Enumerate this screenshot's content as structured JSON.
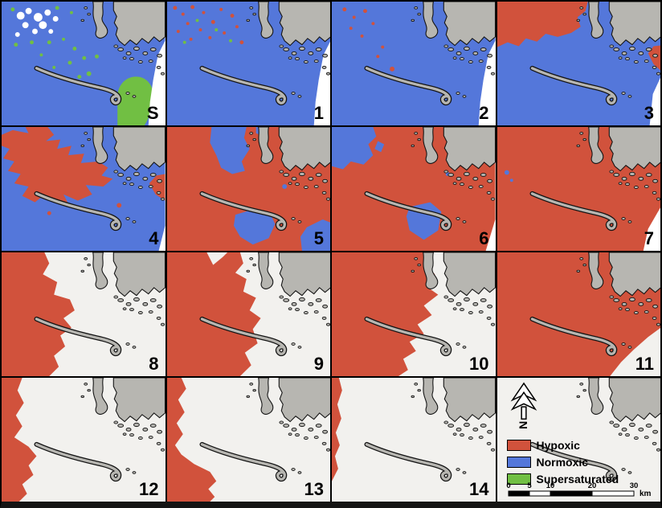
{
  "colors": {
    "hypoxic": "#d1523c",
    "normoxic": "#5477da",
    "supersaturated": "#71bf43",
    "land": "#b7b6b1",
    "land_outline": "#141414",
    "unclassified_water": "#f2f1ee",
    "border": "#000000"
  },
  "panels": [
    {
      "id": "S",
      "label": "S",
      "base": "normoxic"
    },
    {
      "id": "1",
      "label": "1",
      "base": "normoxic"
    },
    {
      "id": "2",
      "label": "2",
      "base": "normoxic"
    },
    {
      "id": "3",
      "label": "3",
      "base": "normoxic"
    },
    {
      "id": "4",
      "label": "4",
      "base": "normoxic"
    },
    {
      "id": "5",
      "label": "5",
      "base": "hypoxic"
    },
    {
      "id": "6",
      "label": "6",
      "base": "hypoxic"
    },
    {
      "id": "7",
      "label": "7",
      "base": "hypoxic"
    },
    {
      "id": "8",
      "label": "8",
      "base": "unclassified"
    },
    {
      "id": "9",
      "label": "9",
      "base": "unclassified"
    },
    {
      "id": "10",
      "label": "10",
      "base": "unclassified"
    },
    {
      "id": "11",
      "label": "11",
      "base": "unclassified"
    },
    {
      "id": "12",
      "label": "12",
      "base": "unclassified"
    },
    {
      "id": "13",
      "label": "13",
      "base": "unclassified"
    },
    {
      "id": "14",
      "label": "14",
      "base": "unclassified"
    }
  ],
  "legend": {
    "north_label": "N",
    "items": [
      {
        "key": "hypoxic",
        "label": "Hypoxic"
      },
      {
        "key": "normoxic",
        "label": "Normoxic"
      },
      {
        "key": "supersaturated",
        "label": "Supersaturated"
      }
    ]
  },
  "scale_bar": {
    "ticks": [
      0,
      5,
      10,
      20,
      30
    ],
    "unit": "km"
  }
}
